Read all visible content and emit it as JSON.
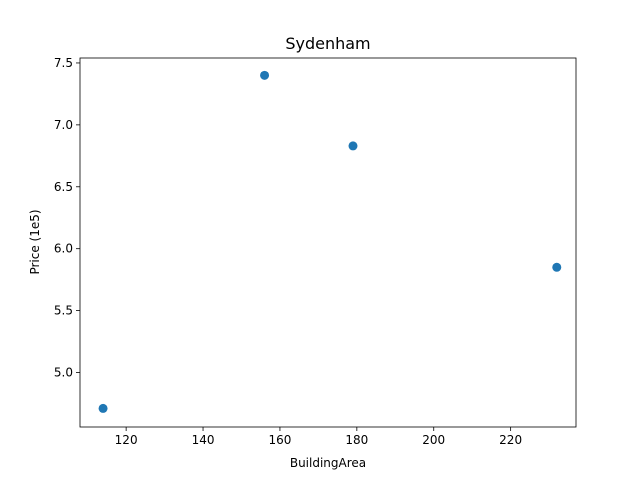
{
  "chart_data": {
    "type": "scatter",
    "title": "Sydenham",
    "xlabel": "BuildingArea",
    "ylabel": "Price (1e5)",
    "xlim": [
      108,
      237
    ],
    "ylim": [
      4.56,
      7.54
    ],
    "xticks": [
      120,
      140,
      160,
      180,
      200,
      220
    ],
    "xtick_labels": [
      "120",
      "140",
      "160",
      "180",
      "200",
      "220"
    ],
    "yticks": [
      5.0,
      5.5,
      6.0,
      6.5,
      7.0,
      7.5
    ],
    "ytick_labels": [
      "5.0",
      "5.5",
      "6.0",
      "6.5",
      "7.0",
      "7.5"
    ],
    "points": [
      {
        "x": 114,
        "y": 4.71
      },
      {
        "x": 156,
        "y": 7.4
      },
      {
        "x": 179,
        "y": 6.83
      },
      {
        "x": 232,
        "y": 5.85
      }
    ],
    "marker_color": "#1f77b4",
    "grid": false,
    "legend": false
  }
}
